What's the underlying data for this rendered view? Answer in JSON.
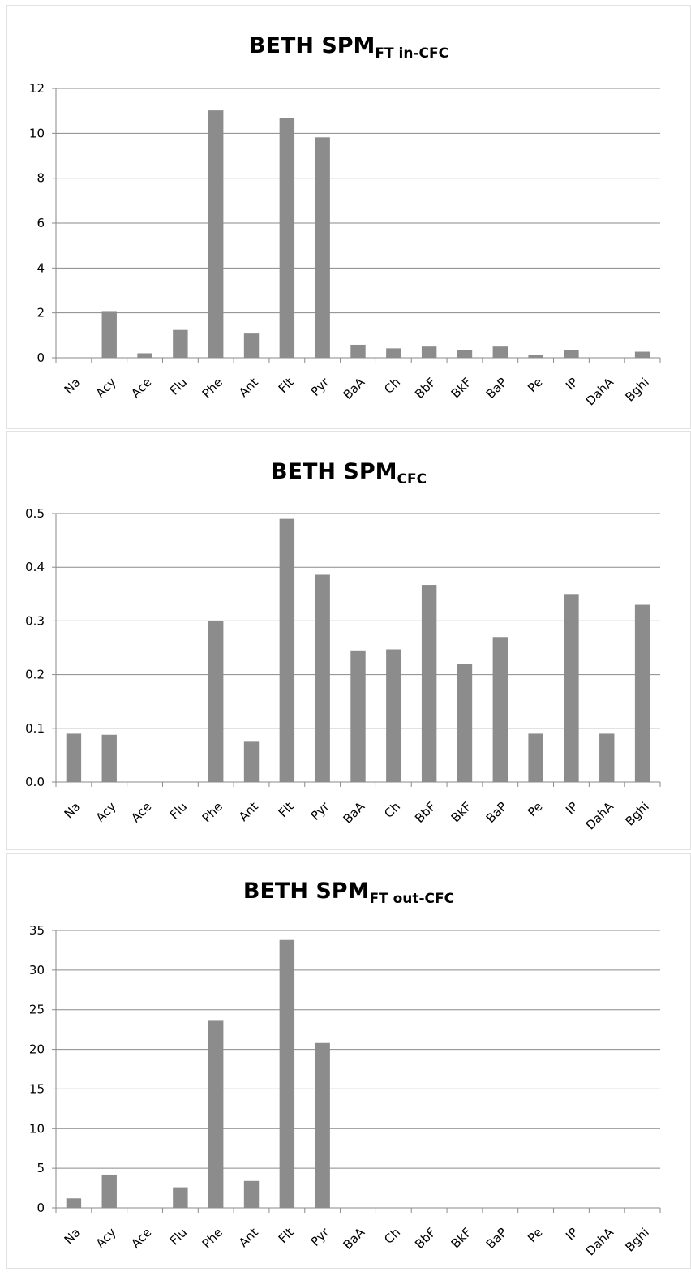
{
  "chart_data": [
    {
      "type": "bar",
      "title": "BETH SPM",
      "title_subscript": "FT in-CFC",
      "categories": [
        "Na",
        "Acy",
        "Ace",
        "Flu",
        "Phe",
        "Ant",
        "Flt",
        "Pyr",
        "BaA",
        "Ch",
        "BbF",
        "BkF",
        "BaP",
        "Pe",
        "IP",
        "DahA",
        "Bghi"
      ],
      "values": [
        0,
        2.08,
        0.2,
        1.24,
        11.02,
        1.08,
        10.67,
        9.82,
        0.58,
        0.42,
        0.5,
        0.35,
        0.5,
        0.12,
        0.35,
        0,
        0.27
      ],
      "ylim": [
        0,
        12
      ],
      "yticks": [
        "0",
        "2",
        "4",
        "6",
        "8",
        "10",
        "12"
      ],
      "grid": true,
      "bar_color": "#8c8c8c"
    },
    {
      "type": "bar",
      "title": "BETH SPM",
      "title_subscript": "CFC",
      "categories": [
        "Na",
        "Acy",
        "Ace",
        "Flu",
        "Phe",
        "Ant",
        "Flt",
        "Pyr",
        "BaA",
        "Ch",
        "BbF",
        "BkF",
        "BaP",
        "Pe",
        "IP",
        "DahA",
        "Bghi"
      ],
      "values": [
        0.09,
        0.088,
        0,
        0,
        0.3,
        0.075,
        0.49,
        0.386,
        0.245,
        0.247,
        0.367,
        0.22,
        0.27,
        0.09,
        0.35,
        0.09,
        0.33
      ],
      "ylim": [
        0,
        0.5
      ],
      "yticks": [
        "0.0",
        "0.1",
        "0.2",
        "0.3",
        "0.4",
        "0.5"
      ],
      "grid": true,
      "bar_color": "#8c8c8c"
    },
    {
      "type": "bar",
      "title": "BETH SPM",
      "title_subscript": "FT out-CFC",
      "categories": [
        "Na",
        "Acy",
        "Ace",
        "Flu",
        "Phe",
        "Ant",
        "Flt",
        "Pyr",
        "BaA",
        "Ch",
        "BbF",
        "BkF",
        "BaP",
        "Pe",
        "IP",
        "DahA",
        "Bghi"
      ],
      "values": [
        1.2,
        4.2,
        0,
        2.6,
        23.7,
        3.4,
        33.8,
        20.8,
        0,
        0,
        0,
        0,
        0,
        0,
        0,
        0,
        0
      ],
      "ylim": [
        0,
        35
      ],
      "yticks": [
        "0",
        "5",
        "10",
        "15",
        "20",
        "25",
        "30",
        "35"
      ],
      "grid": true,
      "bar_color": "#8c8c8c"
    }
  ]
}
